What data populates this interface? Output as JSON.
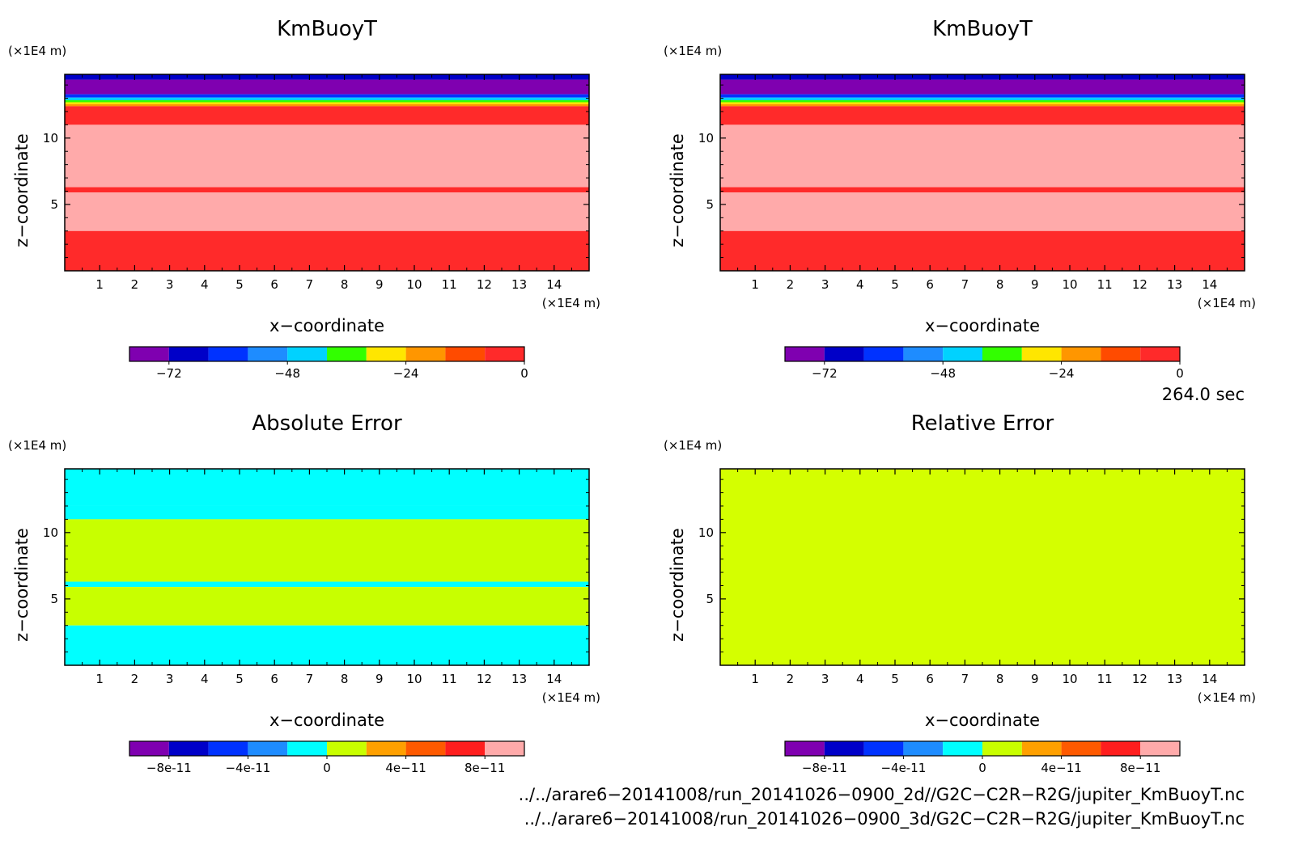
{
  "chart_data": [
    {
      "type": "heatmap",
      "title": "KmBuoyT",
      "xlabel": "x−coordinate",
      "ylabel": "z−coordinate",
      "x_unit": "(×1E4 m)",
      "y_unit": "(×1E4 m)",
      "xlim": [
        0,
        15
      ],
      "ylim": [
        0,
        14.8
      ],
      "x_ticks": [
        "1",
        "2",
        "3",
        "4",
        "5",
        "6",
        "7",
        "8",
        "9",
        "10",
        "11",
        "12",
        "13",
        "14"
      ],
      "y_ticks": [
        "5",
        "10"
      ],
      "colorbar": {
        "levels": [
          -80,
          -72,
          -64,
          -56,
          -48,
          -40,
          -32,
          -24,
          -16,
          -8,
          0
        ],
        "colors": [
          "#7f00b0",
          "#0000c8",
          "#0032ff",
          "#1e8cff",
          "#00d2ff",
          "#32ff00",
          "#ffe600",
          "#ff9600",
          "#ff4b00",
          "#ff2a2a"
        ],
        "tick_labels": [
          "-72",
          "-48",
          "-24",
          "0"
        ]
      },
      "field_bands": [
        {
          "z_from": 14.4,
          "z_to": 14.8,
          "color": "#0000c8"
        },
        {
          "z_from": 13.3,
          "z_to": 14.4,
          "color": "#7f00b0"
        },
        {
          "z_from": 13.05,
          "z_to": 13.3,
          "color": "#0032ff"
        },
        {
          "z_from": 12.85,
          "z_to": 13.05,
          "color": "#00d2ff"
        },
        {
          "z_from": 12.7,
          "z_to": 12.85,
          "color": "#32ff00"
        },
        {
          "z_from": 12.55,
          "z_to": 12.7,
          "color": "#ffe600"
        },
        {
          "z_from": 12.4,
          "z_to": 12.55,
          "color": "#ff9600"
        },
        {
          "z_from": 11.0,
          "z_to": 12.4,
          "color": "#ff2a2a"
        },
        {
          "z_from": 6.3,
          "z_to": 11.0,
          "color": "#ffaaaa"
        },
        {
          "z_from": 5.9,
          "z_to": 6.3,
          "color": "#ff2a2a"
        },
        {
          "z_from": 3.0,
          "z_to": 5.9,
          "color": "#ffaaaa"
        },
        {
          "z_from": 0,
          "z_to": 3.0,
          "color": "#ff2a2a"
        }
      ]
    },
    {
      "type": "heatmap",
      "title": "KmBuoyT",
      "xlabel": "x−coordinate",
      "ylabel": "z−coordinate",
      "x_unit": "(×1E4 m)",
      "y_unit": "(×1E4 m)",
      "xlim": [
        0,
        15
      ],
      "ylim": [
        0,
        14.8
      ],
      "x_ticks": [
        "1",
        "2",
        "3",
        "4",
        "5",
        "6",
        "7",
        "8",
        "9",
        "10",
        "11",
        "12",
        "13",
        "14"
      ],
      "y_ticks": [
        "5",
        "10"
      ],
      "colorbar": {
        "levels": [
          -80,
          -72,
          -64,
          -56,
          -48,
          -40,
          -32,
          -24,
          -16,
          -8,
          0
        ],
        "colors": [
          "#7f00b0",
          "#0000c8",
          "#0032ff",
          "#1e8cff",
          "#00d2ff",
          "#32ff00",
          "#ffe600",
          "#ff9600",
          "#ff4b00",
          "#ff2a2a"
        ],
        "tick_labels": [
          "-72",
          "-48",
          "-24",
          "0"
        ]
      },
      "field_bands": [
        {
          "z_from": 14.4,
          "z_to": 14.8,
          "color": "#0000c8"
        },
        {
          "z_from": 13.3,
          "z_to": 14.4,
          "color": "#7f00b0"
        },
        {
          "z_from": 13.05,
          "z_to": 13.3,
          "color": "#0032ff"
        },
        {
          "z_from": 12.85,
          "z_to": 13.05,
          "color": "#00d2ff"
        },
        {
          "z_from": 12.7,
          "z_to": 12.85,
          "color": "#32ff00"
        },
        {
          "z_from": 12.55,
          "z_to": 12.7,
          "color": "#ffe600"
        },
        {
          "z_from": 12.4,
          "z_to": 12.55,
          "color": "#ff9600"
        },
        {
          "z_from": 11.0,
          "z_to": 12.4,
          "color": "#ff2a2a"
        },
        {
          "z_from": 6.3,
          "z_to": 11.0,
          "color": "#ffaaaa"
        },
        {
          "z_from": 5.9,
          "z_to": 6.3,
          "color": "#ff2a2a"
        },
        {
          "z_from": 3.0,
          "z_to": 5.9,
          "color": "#ffaaaa"
        },
        {
          "z_from": 0,
          "z_to": 3.0,
          "color": "#ff2a2a"
        }
      ]
    },
    {
      "type": "heatmap",
      "title": "Absolute Error",
      "xlabel": "x−coordinate",
      "ylabel": "z−coordinate",
      "x_unit": "(×1E4 m)",
      "y_unit": "(×1E4 m)",
      "xlim": [
        0,
        15
      ],
      "ylim": [
        0,
        14.8
      ],
      "x_ticks": [
        "1",
        "2",
        "3",
        "4",
        "5",
        "6",
        "7",
        "8",
        "9",
        "10",
        "11",
        "12",
        "13",
        "14"
      ],
      "y_ticks": [
        "5",
        "10"
      ],
      "colorbar": {
        "levels": [
          -1e-10,
          -8e-11,
          -6e-11,
          -4e-11,
          -2e-11,
          0,
          2e-11,
          4e-11,
          6e-11,
          8e-11,
          1e-10
        ],
        "colors": [
          "#7f00b0",
          "#0000c8",
          "#0032ff",
          "#1e8cff",
          "#00ffff",
          "#c8ff00",
          "#ffa000",
          "#ff5a00",
          "#ff1e1e",
          "#ffaaaa"
        ],
        "tick_labels": [
          "-8e-11",
          "-4e-11",
          "0",
          "4e-11",
          "8e-11"
        ]
      },
      "field_bands": [
        {
          "z_from": 12.0,
          "z_to": 14.8,
          "color": "#00ffff"
        },
        {
          "z_from": 11.0,
          "z_to": 12.0,
          "color": "#00ffff"
        },
        {
          "z_from": 6.3,
          "z_to": 11.0,
          "color": "#c8ff00"
        },
        {
          "z_from": 5.9,
          "z_to": 6.3,
          "color": "#00ffff"
        },
        {
          "z_from": 3.0,
          "z_to": 5.9,
          "color": "#c8ff00"
        },
        {
          "z_from": 0,
          "z_to": 3.0,
          "color": "#00ffff"
        }
      ]
    },
    {
      "type": "heatmap",
      "title": "Relative Error",
      "xlabel": "x−coordinate",
      "ylabel": "z−coordinate",
      "x_unit": "(×1E4 m)",
      "y_unit": "(×1E4 m)",
      "xlim": [
        0,
        15
      ],
      "ylim": [
        0,
        14.8
      ],
      "x_ticks": [
        "1",
        "2",
        "3",
        "4",
        "5",
        "6",
        "7",
        "8",
        "9",
        "10",
        "11",
        "12",
        "13",
        "14"
      ],
      "y_ticks": [
        "5",
        "10"
      ],
      "colorbar": {
        "levels": [
          -1e-10,
          -8e-11,
          -6e-11,
          -4e-11,
          -2e-11,
          0,
          2e-11,
          4e-11,
          6e-11,
          8e-11,
          1e-10
        ],
        "colors": [
          "#7f00b0",
          "#0000c8",
          "#0032ff",
          "#1e8cff",
          "#00ffff",
          "#c8ff00",
          "#ffa000",
          "#ff5a00",
          "#ff1e1e",
          "#ffaaaa"
        ],
        "tick_labels": [
          "-8e-11",
          "-4e-11",
          "0",
          "4e-11",
          "8e-11"
        ]
      },
      "field_bands": [
        {
          "z_from": 0,
          "z_to": 14.8,
          "color": "#d4ff00"
        }
      ]
    }
  ],
  "time_label": "264.0 sec",
  "file_paths": [
    "../../arare6−20141008/run_20141026−0900_2d//G2C−C2R−R2G/jupiter_KmBuoyT.nc",
    "../../arare6−20141008/run_20141026−0900_3d/G2C−C2R−R2G/jupiter_KmBuoyT.nc"
  ]
}
